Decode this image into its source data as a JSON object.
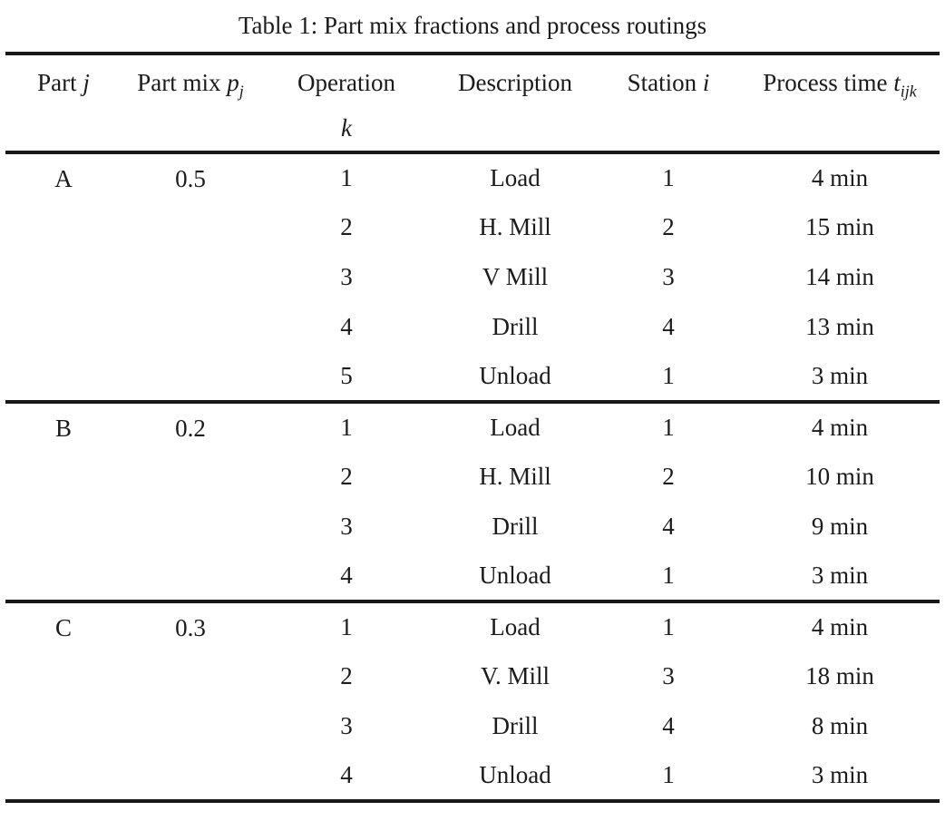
{
  "title": "Table 1: Part mix fractions and process routings",
  "colors": {
    "text": "#1b1b1b",
    "rule": "#181818",
    "background": "#ffffff"
  },
  "table": {
    "columns": [
      {
        "label": "Part",
        "var": "j",
        "sub": ""
      },
      {
        "label": "Part mix",
        "var": "p",
        "sub": "j"
      },
      {
        "label": "Operation",
        "var": "k",
        "sub": ""
      },
      {
        "label": "Description",
        "var": "",
        "sub": ""
      },
      {
        "label": "Station",
        "var": "i",
        "sub": ""
      },
      {
        "label": "Process time",
        "var": "t",
        "sub": "ijk"
      }
    ],
    "sections": [
      {
        "part": "A",
        "mix": "0.5",
        "operations": [
          {
            "k": "1",
            "description": "Load",
            "station": "1",
            "time": "4 min"
          },
          {
            "k": "2",
            "description": "H. Mill",
            "station": "2",
            "time": "15 min"
          },
          {
            "k": "3",
            "description": "V Mill",
            "station": "3",
            "time": "14 min"
          },
          {
            "k": "4",
            "description": "Drill",
            "station": "4",
            "time": "13 min"
          },
          {
            "k": "5",
            "description": "Unload",
            "station": "1",
            "time": "3 min"
          }
        ]
      },
      {
        "part": "B",
        "mix": "0.2",
        "operations": [
          {
            "k": "1",
            "description": "Load",
            "station": "1",
            "time": "4 min"
          },
          {
            "k": "2",
            "description": "H. Mill",
            "station": "2",
            "time": "10 min"
          },
          {
            "k": "3",
            "description": "Drill",
            "station": "4",
            "time": "9 min"
          },
          {
            "k": "4",
            "description": "Unload",
            "station": "1",
            "time": "3 min"
          }
        ]
      },
      {
        "part": "C",
        "mix": "0.3",
        "operations": [
          {
            "k": "1",
            "description": "Load",
            "station": "1",
            "time": "4 min"
          },
          {
            "k": "2",
            "description": "V. Mill",
            "station": "3",
            "time": "18 min"
          },
          {
            "k": "3",
            "description": "Drill",
            "station": "4",
            "time": "8 min"
          },
          {
            "k": "4",
            "description": "Unload",
            "station": "1",
            "time": "3 min"
          }
        ]
      }
    ]
  }
}
